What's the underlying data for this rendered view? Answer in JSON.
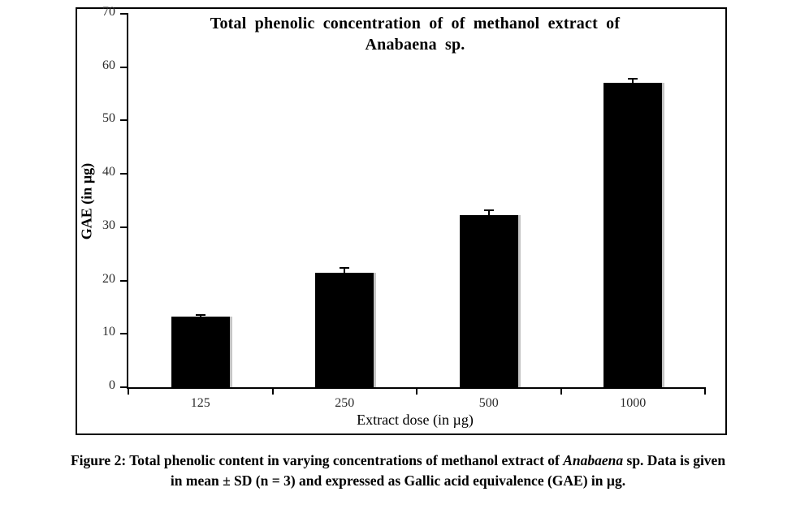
{
  "chart_data": {
    "type": "bar",
    "title_line1": "Total phenolic concentration of of methanol extract of",
    "title_line2": "Anabaena sp.",
    "categories": [
      "125",
      "250",
      "500",
      "1000"
    ],
    "values": [
      13.2,
      21.5,
      32.2,
      57.1
    ],
    "errors_sd": [
      0.4,
      0.8,
      1.0,
      0.7
    ],
    "xlabel": "Extract dose (in µg)",
    "ylabel": "GAE (in µg)",
    "ylim": [
      0,
      70
    ],
    "yticks": [
      0,
      10,
      20,
      30,
      40,
      50,
      60,
      70
    ],
    "bar_color": "#000000",
    "grid": false,
    "legend_position": "none"
  },
  "caption": {
    "line1_pre": "Figure 2: Total phenolic content in varying concentrations of methanol extract of ",
    "line1_italic": "Anabaena",
    "line1_post": " sp. Data is given",
    "line2": "in mean ± SD (n = 3) and expressed as Gallic acid equivalence (GAE) in µg."
  }
}
